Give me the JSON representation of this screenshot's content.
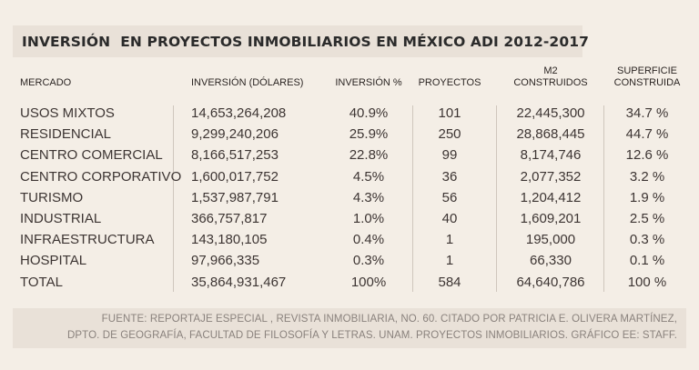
{
  "chart_data": {
    "type": "table",
    "title": "INVERSIÓN  EN PROYECTOS INMOBILIARIOS EN MÉXICO ADI 2012-2017",
    "columns": [
      {
        "label": "MERCADO"
      },
      {
        "label": "INVERSIÓN (DÓLARES)"
      },
      {
        "label": "INVERSIÓN %"
      },
      {
        "label": "PROYECTOS"
      },
      {
        "label": "M2",
        "label2": "CONSTRUIDOS"
      },
      {
        "label": "SUPERFICIE",
        "label2": "CONSTRUIDA"
      }
    ],
    "rows": [
      [
        "USOS MIXTOS",
        "14,653,264,208",
        "40.9%",
        "101",
        "22,445,300",
        "34.7 %"
      ],
      [
        "RESIDENCIAL",
        "9,299,240,206",
        "25.9%",
        "250",
        "28,868,445",
        "44.7 %"
      ],
      [
        "CENTRO COMERCIAL",
        "8,166,517,253",
        "22.8%",
        "99",
        "8,174,746",
        "12.6 %"
      ],
      [
        "CENTRO CORPORATIVO",
        "1,600,017,752",
        "4.5%",
        "36",
        "2,077,352",
        "3.2 %"
      ],
      [
        "TURISMO",
        "1,537,987,791",
        "4.3%",
        "56",
        "1,204,412",
        "1.9 %"
      ],
      [
        "INDUSTRIAL",
        "366,757,817",
        "1.0%",
        "40",
        "1,609,201",
        "2.5 %"
      ],
      [
        "INFRAESTRUCTURA",
        "143,180,105",
        "0.4%",
        "1",
        "195,000",
        "0.3 %"
      ],
      [
        "HOSPITAL",
        "97,966,335",
        "0.3%",
        "1",
        "66,330",
        "0.1 %"
      ],
      [
        "TOTAL",
        "35,864,931,467",
        "100%",
        "584",
        "64,640,786",
        "100 %"
      ]
    ],
    "source_lines": [
      "FUENTE:  REPORTAJE ESPECIAL , REVISTA INMOBILIARIA, NO. 60. CITADO POR PATRICIA E. OLIVERA MARTÍNEZ,",
      "DPTO. DE GEOGRAFÍA, FACULTAD DE FILOSOFÍA Y LETRAS. UNAM. PROYECTOS INMOBILIARIOS. GRÁFICO EE: STAFF."
    ]
  },
  "colors": {
    "background": "#f4eee6",
    "band": "#e9e1d8",
    "text": "#3d3533",
    "source_text": "#8a827d",
    "rule": "#cfc6bd"
  }
}
